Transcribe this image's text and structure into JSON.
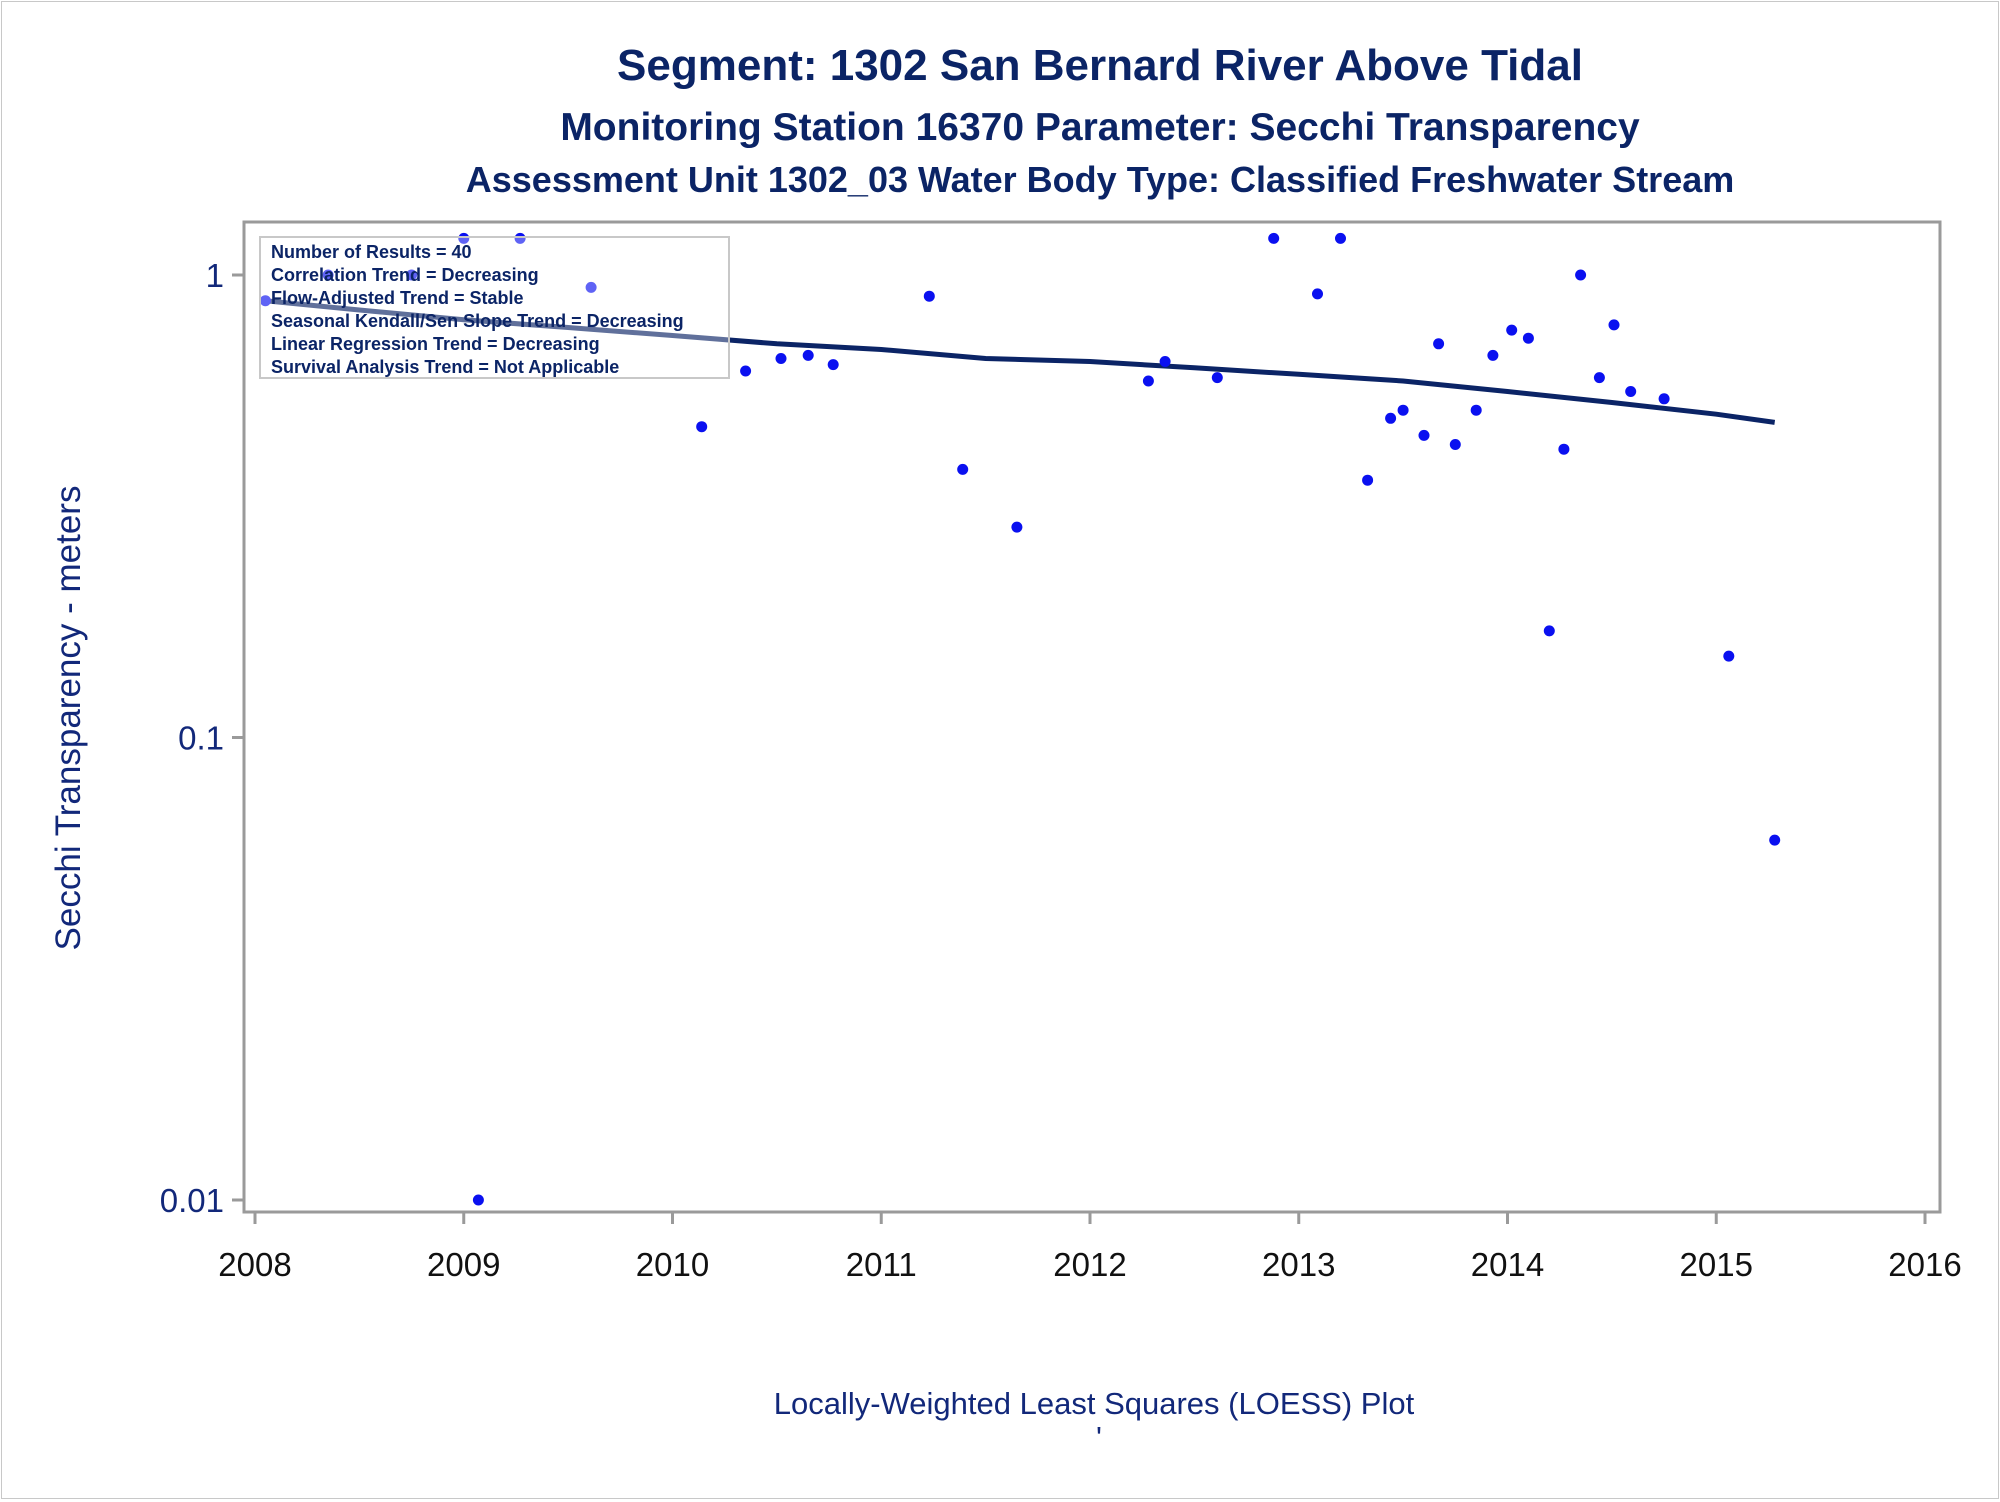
{
  "titles": {
    "line1": "Segment: 1302  San Bernard River Above Tidal",
    "line2": "Monitoring Station 16370 Parameter: Secchi Transparency",
    "line3": "Assessment Unit 1302_03   Water Body Type: Classified Freshwater Stream"
  },
  "footnote": "Locally-Weighted Least Squares (LOESS) Plot",
  "footnote_mark": "'",
  "legend": {
    "lines": [
      "Number of Results = 40",
      "Correlation Trend = Decreasing",
      "Flow-Adjusted Trend = Stable",
      "Seasonal Kendall/Sen Slope Trend = Decreasing",
      "Linear Regression Trend = Decreasing",
      "Survival Analysis Trend = Not Applicable"
    ]
  },
  "colors": {
    "title": "#0b2466",
    "points": "#0a10f0",
    "loess_line": "#0b2466",
    "axis_frame": "#9a9a9a"
  },
  "chart_data": {
    "type": "scatter",
    "ylabel": "Secchi Transparency - meters",
    "xlabel": "",
    "x_ticks": [
      2008,
      2009,
      2010,
      2011,
      2012,
      2013,
      2014,
      2015,
      2016
    ],
    "y_ticks": [
      {
        "value": 0.01,
        "label": "0.01"
      },
      {
        "value": 0.1,
        "label": "0.1"
      },
      {
        "value": 1,
        "label": "1"
      }
    ],
    "xlim": [
      2008,
      2016.1
    ],
    "ylim": [
      0.0088,
      1.3
    ],
    "y_scale": "log",
    "grid": false,
    "legend_position": "top-left",
    "points": [
      {
        "x": 2008.05,
        "y": 0.88
      },
      {
        "x": 2008.35,
        "y": 1.0
      },
      {
        "x": 2008.75,
        "y": 1.0
      },
      {
        "x": 2009.0,
        "y": 1.2
      },
      {
        "x": 2009.07,
        "y": 0.01
      },
      {
        "x": 2009.27,
        "y": 1.2
      },
      {
        "x": 2009.61,
        "y": 0.94
      },
      {
        "x": 2010.14,
        "y": 0.47
      },
      {
        "x": 2010.35,
        "y": 0.62
      },
      {
        "x": 2010.52,
        "y": 0.66
      },
      {
        "x": 2010.65,
        "y": 0.67
      },
      {
        "x": 2010.77,
        "y": 0.64
      },
      {
        "x": 2011.23,
        "y": 0.9
      },
      {
        "x": 2011.39,
        "y": 0.38
      },
      {
        "x": 2011.65,
        "y": 0.285
      },
      {
        "x": 2012.28,
        "y": 0.59
      },
      {
        "x": 2012.36,
        "y": 0.65
      },
      {
        "x": 2012.61,
        "y": 0.6
      },
      {
        "x": 2012.88,
        "y": 1.2
      },
      {
        "x": 2013.09,
        "y": 0.91
      },
      {
        "x": 2013.2,
        "y": 1.2
      },
      {
        "x": 2013.33,
        "y": 0.36
      },
      {
        "x": 2013.44,
        "y": 0.49
      },
      {
        "x": 2013.5,
        "y": 0.51
      },
      {
        "x": 2013.6,
        "y": 0.45
      },
      {
        "x": 2013.67,
        "y": 0.71
      },
      {
        "x": 2013.75,
        "y": 0.43
      },
      {
        "x": 2013.85,
        "y": 0.51
      },
      {
        "x": 2013.93,
        "y": 0.67
      },
      {
        "x": 2014.02,
        "y": 0.76
      },
      {
        "x": 2014.1,
        "y": 0.73
      },
      {
        "x": 2014.2,
        "y": 0.17
      },
      {
        "x": 2014.27,
        "y": 0.42
      },
      {
        "x": 2014.35,
        "y": 1.0
      },
      {
        "x": 2014.44,
        "y": 0.6
      },
      {
        "x": 2014.51,
        "y": 0.78
      },
      {
        "x": 2014.59,
        "y": 0.56
      },
      {
        "x": 2014.75,
        "y": 0.54
      },
      {
        "x": 2015.06,
        "y": 0.15
      },
      {
        "x": 2015.28,
        "y": 0.06
      }
    ],
    "loess_line": [
      {
        "x": 2008.05,
        "y": 0.88
      },
      {
        "x": 2008.5,
        "y": 0.84
      },
      {
        "x": 2009.0,
        "y": 0.8
      },
      {
        "x": 2009.5,
        "y": 0.77
      },
      {
        "x": 2010.0,
        "y": 0.74
      },
      {
        "x": 2010.5,
        "y": 0.71
      },
      {
        "x": 2011.0,
        "y": 0.69
      },
      {
        "x": 2011.5,
        "y": 0.66
      },
      {
        "x": 2012.0,
        "y": 0.65
      },
      {
        "x": 2012.5,
        "y": 0.63
      },
      {
        "x": 2013.0,
        "y": 0.61
      },
      {
        "x": 2013.5,
        "y": 0.59
      },
      {
        "x": 2014.0,
        "y": 0.56
      },
      {
        "x": 2014.5,
        "y": 0.53
      },
      {
        "x": 2015.0,
        "y": 0.5
      },
      {
        "x": 2015.28,
        "y": 0.48
      }
    ]
  }
}
